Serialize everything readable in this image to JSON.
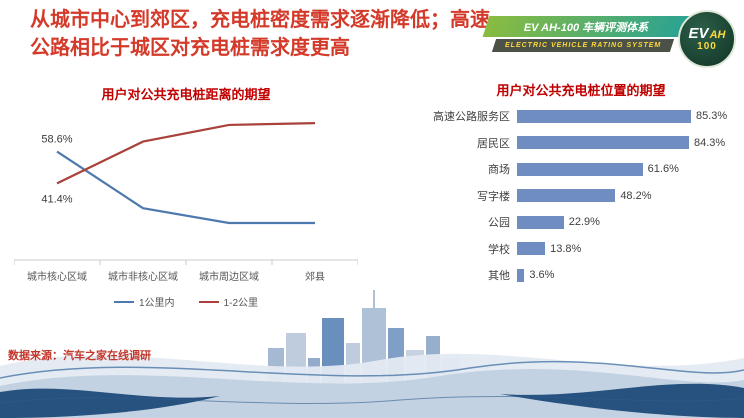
{
  "slide": {
    "title": "从城市中心到郊区，充电桩密度需求逐渐降低；高速公路相比于城区对充电桩需求度更高",
    "source": "数据来源：汽车之家在线调研"
  },
  "badge": {
    "ribbon": "EV AH-100 车辆评测体系",
    "subtitle": "ELECTRIC VEHICLE RATING SYSTEM",
    "logo_ev": "EV",
    "logo_ah": "AH",
    "logo_num": "100"
  },
  "colors": {
    "title_red": "#d43a2a",
    "chart_title_red": "#c00000",
    "line_blue": "#4e79ae",
    "line_red": "#a8423a",
    "bar_blue": "#6f8dc0"
  },
  "chart_data": [
    {
      "type": "line",
      "title": "用户对公共充电桩距离的期望",
      "categories": [
        "城市核心区域",
        "城市非核心区域",
        "城市周边区域",
        "郊县"
      ],
      "ylim": [
        0,
        80
      ],
      "legend_position": "bottom",
      "series": [
        {
          "name": "1公里内",
          "color": "#4e79ae",
          "values": [
            58.6,
            28,
            20,
            20
          ],
          "first_point_label": "58.6%"
        },
        {
          "name": "1-2公里",
          "color": "#a8423a",
          "values": [
            41.4,
            64,
            73,
            74
          ],
          "first_point_label": "41.4%"
        }
      ]
    },
    {
      "type": "bar",
      "orientation": "horizontal",
      "title": "用户对公共充电桩位置的期望",
      "categories": [
        "高速公路服务区",
        "居民区",
        "商场",
        "写字楼",
        "公园",
        "学校",
        "其他"
      ],
      "values": [
        85.3,
        84.3,
        61.6,
        48.2,
        22.9,
        13.8,
        3.6
      ],
      "value_labels": [
        "85.3%",
        "84.3%",
        "61.6%",
        "48.2%",
        "22.9%",
        "13.8%",
        "3.6%"
      ],
      "xlim": [
        0,
        100
      ],
      "bar_color": "#6f8dc0"
    }
  ]
}
